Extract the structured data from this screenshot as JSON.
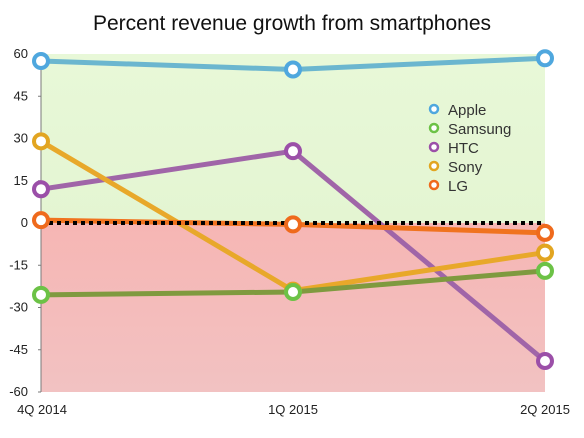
{
  "chart_data": {
    "type": "line",
    "title": "Percent revenue growth from smartphones",
    "xlabel": "",
    "ylabel": "",
    "categories": [
      "4Q 2014",
      "1Q 2015",
      "2Q 2015"
    ],
    "ylim": [
      -60,
      60
    ],
    "yticks": [
      60,
      45,
      30,
      15,
      0,
      -15,
      -30,
      -45,
      -60
    ],
    "grid": false,
    "legend_position": "right",
    "series": [
      {
        "name": "Apple",
        "values": [
          57.5,
          54.5,
          58.5
        ],
        "color": "#6bb6cf",
        "marker_color": "#4fa7de"
      },
      {
        "name": "Samsung",
        "values": [
          -25.5,
          -24.5,
          -17.0
        ],
        "color": "#7f9a3f",
        "marker_color": "#6cc246"
      },
      {
        "name": "HTC",
        "values": [
          12.0,
          25.5,
          -49.0
        ],
        "color": "#a065a8",
        "marker_color": "#9b4fa8"
      },
      {
        "name": "Sony",
        "values": [
          29.0,
          -24.0,
          -10.5
        ],
        "color": "#e8a82a",
        "marker_color": "#e2a521"
      },
      {
        "name": "LG",
        "values": [
          1.0,
          -0.5,
          -3.5
        ],
        "color": "#f0731f",
        "marker_color": "#ef6a1c"
      }
    ],
    "positive_region_color": "#e4f5d2",
    "negative_region_color": "#f2c2c2",
    "zero_line_style": "dotted-black"
  }
}
